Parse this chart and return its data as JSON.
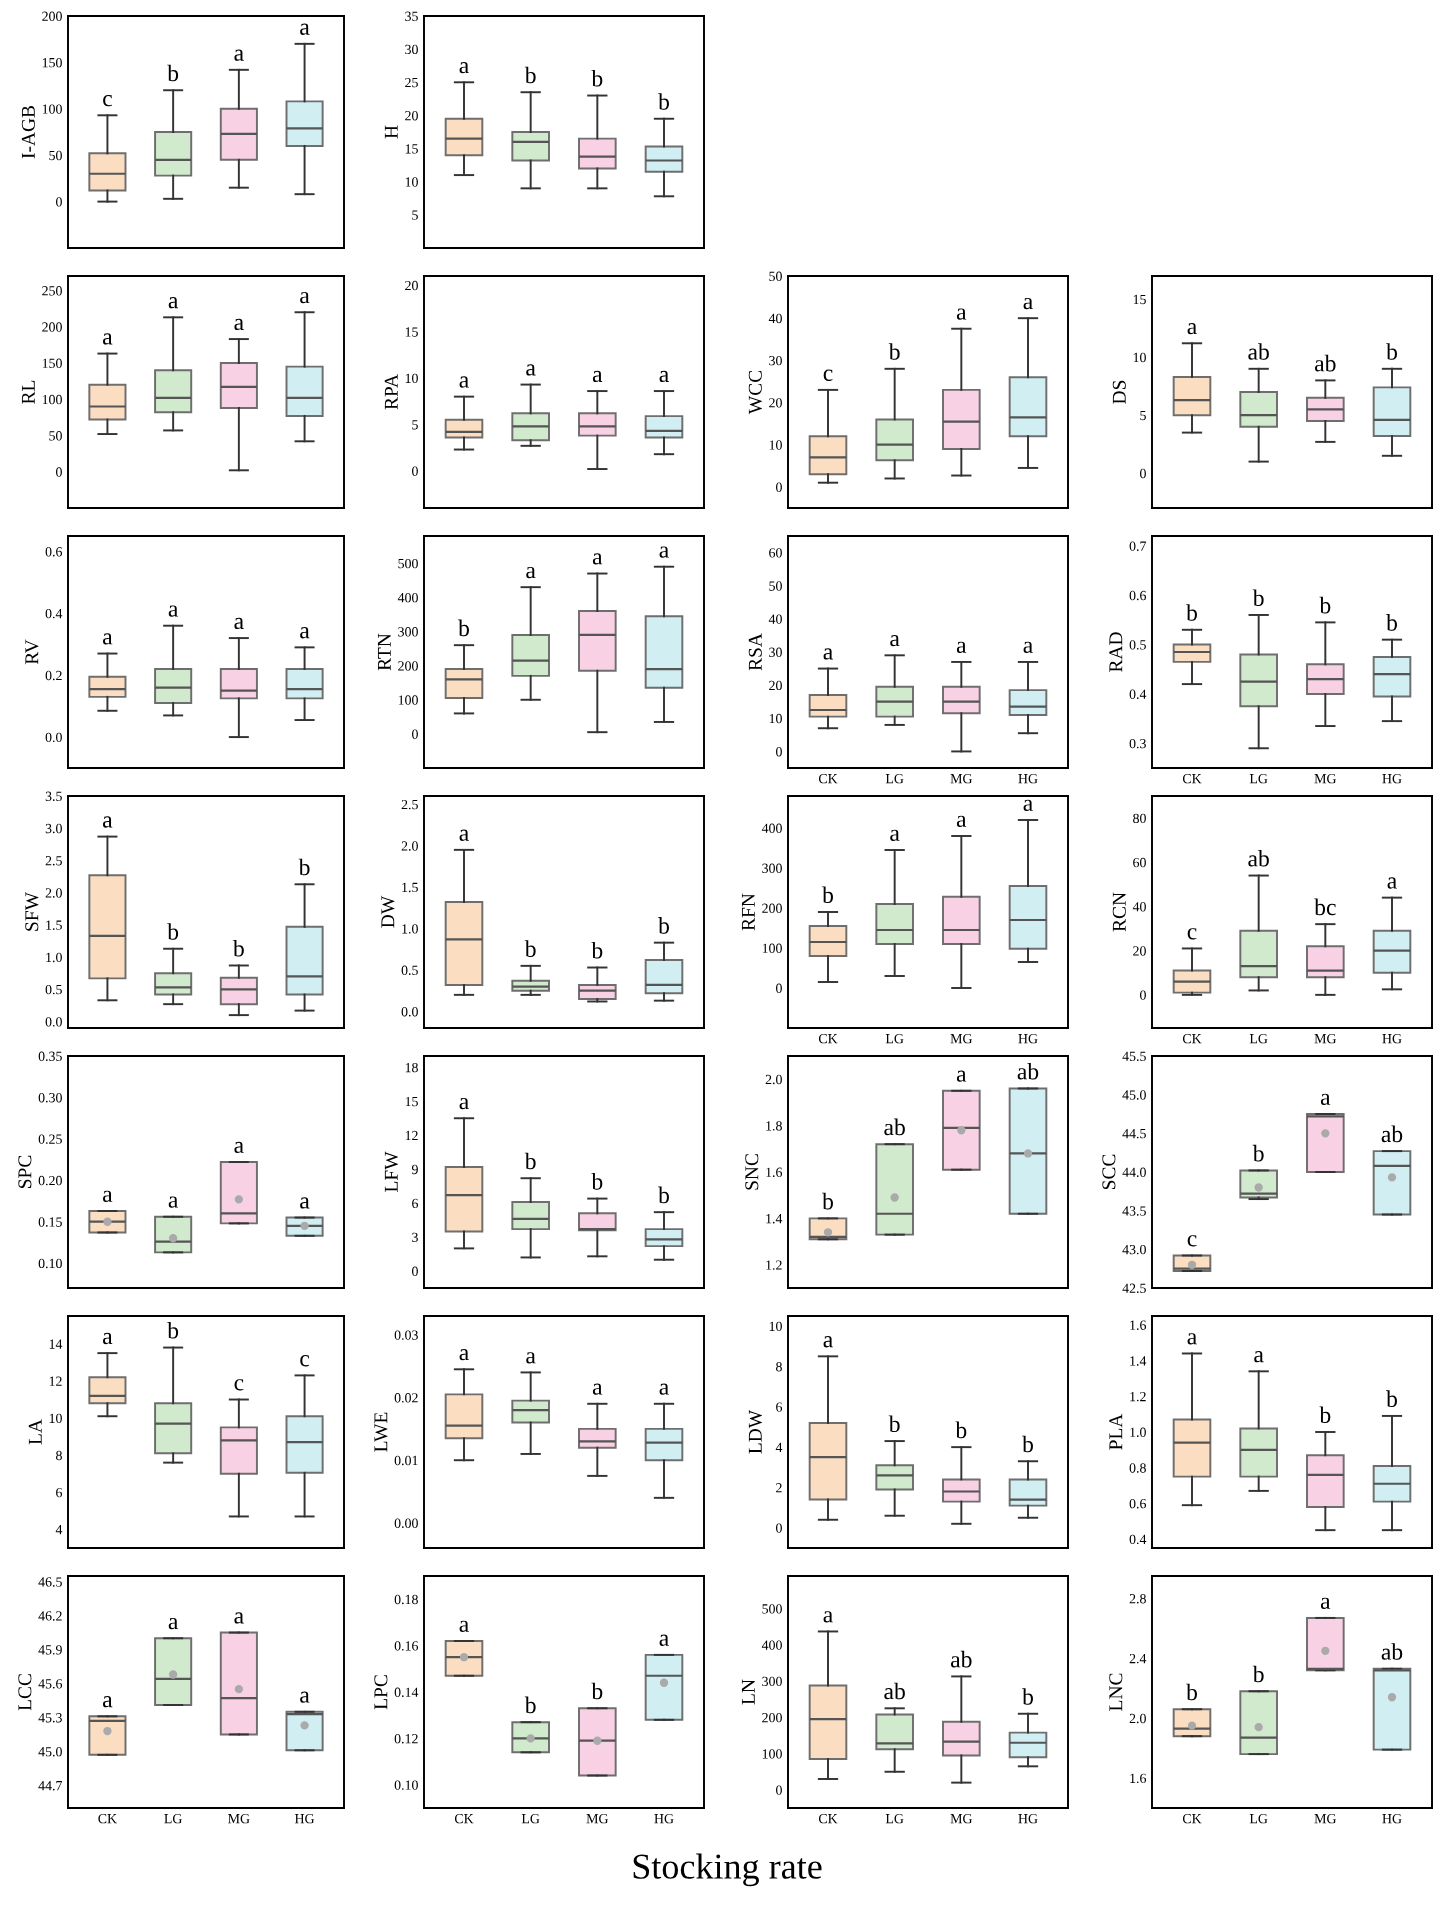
{
  "chart_data": [
    {
      "type": "box",
      "ylabel": "I-AGB",
      "categories": [
        "CK",
        "LG",
        "MG",
        "HG"
      ],
      "colors": [
        "#fbd9b8",
        "#c9e6c4",
        "#f9c9e0",
        "#c9ecf0"
      ],
      "ylim": [
        -50,
        200
      ],
      "yticks": [
        0,
        50,
        100,
        150,
        200
      ],
      "tick_labels": "y",
      "boxes": [
        {
          "low": 0,
          "q1": 12,
          "median": 30,
          "q3": 52,
          "high": 93
        },
        {
          "low": 3,
          "q1": 28,
          "median": 45,
          "q3": 75,
          "high": 120
        },
        {
          "low": 15,
          "q1": 45,
          "median": 73,
          "q3": 100,
          "high": 142
        },
        {
          "low": 8,
          "q1": 60,
          "median": 79,
          "q3": 108,
          "high": 170
        }
      ],
      "annotations": [
        {
          "text": "c",
          "x": "CK",
          "y": 93
        },
        {
          "text": "b",
          "x": "LG",
          "y": 120
        },
        {
          "text": "a",
          "x": "MG",
          "y": 142
        },
        {
          "text": "a",
          "x": "HG",
          "y": 170
        }
      ]
    },
    {
      "type": "box",
      "ylabel": "H",
      "categories": [
        "CK",
        "LG",
        "MG",
        "HG"
      ],
      "colors": [
        "#fbd9b8",
        "#c9e6c4",
        "#f9c9e0",
        "#c9ecf0"
      ],
      "ylim": [
        0,
        35
      ],
      "yticks": [
        5,
        10,
        15,
        20,
        25,
        30,
        35
      ],
      "tick_labels": "y",
      "boxes": [
        {
          "low": 11,
          "q1": 14,
          "median": 16.5,
          "q3": 19.5,
          "high": 25
        },
        {
          "low": 9,
          "q1": 13.2,
          "median": 16,
          "q3": 17.5,
          "high": 23.5
        },
        {
          "low": 9,
          "q1": 12,
          "median": 13.8,
          "q3": 16.5,
          "high": 23
        },
        {
          "low": 7.8,
          "q1": 11.5,
          "median": 13.2,
          "q3": 15.3,
          "high": 19.5
        }
      ],
      "annotations": [
        {
          "text": "a",
          "x": "CK",
          "y": 25
        },
        {
          "text": "b",
          "x": "LG",
          "y": 23.5
        },
        {
          "text": "b",
          "x": "MG",
          "y": 23
        },
        {
          "text": "b",
          "x": "HG",
          "y": 19.5
        }
      ]
    },
    {
      "type": "box",
      "ylabel": "RL",
      "categories": [
        "CK",
        "LG",
        "MG",
        "HG"
      ],
      "colors": [
        "#fbd9b8",
        "#c9e6c4",
        "#f9c9e0",
        "#c9ecf0"
      ],
      "ylim": [
        -50,
        270
      ],
      "yticks": [
        0,
        50,
        100,
        150,
        200,
        250
      ],
      "tick_labels": "y",
      "boxes": [
        {
          "low": 52,
          "q1": 72,
          "median": 90,
          "q3": 120,
          "high": 163
        },
        {
          "low": 57,
          "q1": 82,
          "median": 102,
          "q3": 140,
          "high": 213
        },
        {
          "low": 2,
          "q1": 88,
          "median": 117,
          "q3": 150,
          "high": 183
        },
        {
          "low": 42,
          "q1": 77,
          "median": 102,
          "q3": 145,
          "high": 220
        }
      ],
      "annotations": [
        {
          "text": "a",
          "x": "CK",
          "y": 163
        },
        {
          "text": "a",
          "x": "LG",
          "y": 213
        },
        {
          "text": "a",
          "x": "MG",
          "y": 183
        },
        {
          "text": "a",
          "x": "HG",
          "y": 220
        }
      ]
    },
    {
      "type": "box",
      "ylabel": "RPA",
      "categories": [
        "CK",
        "LG",
        "MG",
        "HG"
      ],
      "colors": [
        "#fbd9b8",
        "#c9e6c4",
        "#f9c9e0",
        "#c9ecf0"
      ],
      "ylim": [
        -4,
        21
      ],
      "yticks": [
        0,
        5,
        10,
        15,
        20
      ],
      "tick_labels": "y",
      "boxes": [
        {
          "low": 2.3,
          "q1": 3.6,
          "median": 4.2,
          "q3": 5.5,
          "high": 8
        },
        {
          "low": 2.7,
          "q1": 3.3,
          "median": 4.8,
          "q3": 6.2,
          "high": 9.3
        },
        {
          "low": 0.2,
          "q1": 3.8,
          "median": 4.8,
          "q3": 6.2,
          "high": 8.6
        },
        {
          "low": 1.8,
          "q1": 3.6,
          "median": 4.3,
          "q3": 5.9,
          "high": 8.6
        }
      ],
      "annotations": [
        {
          "text": "a",
          "x": "CK",
          "y": 8
        },
        {
          "text": "a",
          "x": "LG",
          "y": 9.3
        },
        {
          "text": "a",
          "x": "MG",
          "y": 8.6
        },
        {
          "text": "a",
          "x": "HG",
          "y": 8.6
        }
      ]
    },
    {
      "type": "box",
      "ylabel": "WCC",
      "categories": [
        "CK",
        "LG",
        "MG",
        "HG"
      ],
      "colors": [
        "#fbd9b8",
        "#c9e6c4",
        "#f9c9e0",
        "#c9ecf0"
      ],
      "ylim": [
        -5,
        50
      ],
      "yticks": [
        0,
        10,
        20,
        30,
        40,
        50
      ],
      "tick_labels": "y",
      "boxes": [
        {
          "low": 1,
          "q1": 3,
          "median": 7,
          "q3": 12,
          "high": 23
        },
        {
          "low": 2,
          "q1": 6.3,
          "median": 10,
          "q3": 16,
          "high": 28
        },
        {
          "low": 2.7,
          "q1": 9,
          "median": 15.5,
          "q3": 23,
          "high": 37.5
        },
        {
          "low": 4.5,
          "q1": 12,
          "median": 16.5,
          "q3": 26,
          "high": 40
        }
      ],
      "annotations": [
        {
          "text": "c",
          "x": "CK",
          "y": 23
        },
        {
          "text": "b",
          "x": "LG",
          "y": 28
        },
        {
          "text": "a",
          "x": "MG",
          "y": 37.5
        },
        {
          "text": "a",
          "x": "HG",
          "y": 40
        }
      ]
    },
    {
      "type": "box",
      "ylabel": "DS",
      "categories": [
        "CK",
        "LG",
        "MG",
        "HG"
      ],
      "colors": [
        "#fbd9b8",
        "#c9e6c4",
        "#f9c9e0",
        "#c9ecf0"
      ],
      "ylim": [
        -3,
        17
      ],
      "yticks": [
        0,
        5,
        10,
        15
      ],
      "tick_labels": "y",
      "boxes": [
        {
          "low": 3.5,
          "q1": 5,
          "median": 6.3,
          "q3": 8.3,
          "high": 11.2
        },
        {
          "low": 1,
          "q1": 4,
          "median": 5,
          "q3": 7,
          "high": 9
        },
        {
          "low": 2.7,
          "q1": 4.5,
          "median": 5.5,
          "q3": 6.5,
          "high": 8
        },
        {
          "low": 1.5,
          "q1": 3.2,
          "median": 4.6,
          "q3": 7.4,
          "high": 9
        }
      ],
      "annotations": [
        {
          "text": "a",
          "x": "CK",
          "y": 11.2
        },
        {
          "text": "ab",
          "x": "LG",
          "y": 9
        },
        {
          "text": "ab",
          "x": "MG",
          "y": 8
        },
        {
          "text": "b",
          "x": "HG",
          "y": 9
        }
      ]
    },
    {
      "type": "box",
      "ylabel": "RV",
      "categories": [
        "CK",
        "LG",
        "MG",
        "HG"
      ],
      "colors": [
        "#fbd9b8",
        "#c9e6c4",
        "#f9c9e0",
        "#c9ecf0"
      ],
      "ylim": [
        -0.1,
        0.65
      ],
      "yticks": [
        {
          "value": 0,
          "label": "0.0"
        },
        0.2,
        0.4,
        0.6
      ],
      "tick_labels": "y",
      "boxes": [
        {
          "low": 0.085,
          "q1": 0.13,
          "median": 0.155,
          "q3": 0.195,
          "high": 0.27
        },
        {
          "low": 0.07,
          "q1": 0.11,
          "median": 0.16,
          "q3": 0.22,
          "high": 0.36
        },
        {
          "low": 0,
          "q1": 0.125,
          "median": 0.15,
          "q3": 0.22,
          "high": 0.32
        },
        {
          "low": 0.055,
          "q1": 0.125,
          "median": 0.155,
          "q3": 0.22,
          "high": 0.29
        }
      ],
      "annotations": [
        {
          "text": "a",
          "x": "CK",
          "y": 0.27
        },
        {
          "text": "a",
          "x": "LG",
          "y": 0.36
        },
        {
          "text": "a",
          "x": "MG",
          "y": 0.32
        },
        {
          "text": "a",
          "x": "HG",
          "y": 0.29
        }
      ]
    },
    {
      "type": "box",
      "ylabel": "RTN",
      "categories": [
        "CK",
        "LG",
        "MG",
        "HG"
      ],
      "colors": [
        "#fbd9b8",
        "#c9e6c4",
        "#f9c9e0",
        "#c9ecf0"
      ],
      "ylim": [
        -100,
        580
      ],
      "yticks": [
        0,
        100,
        200,
        300,
        400,
        500
      ],
      "tick_labels": "y",
      "boxes": [
        {
          "low": 60,
          "q1": 105,
          "median": 160,
          "q3": 190,
          "high": 260
        },
        {
          "low": 100,
          "q1": 170,
          "median": 215,
          "q3": 290,
          "high": 430
        },
        {
          "low": 5,
          "q1": 185,
          "median": 290,
          "q3": 360,
          "high": 470
        },
        {
          "low": 35,
          "q1": 135,
          "median": 190,
          "q3": 345,
          "high": 490
        }
      ],
      "annotations": [
        {
          "text": "b",
          "x": "CK",
          "y": 260
        },
        {
          "text": "a",
          "x": "LG",
          "y": 430
        },
        {
          "text": "a",
          "x": "MG",
          "y": 470
        },
        {
          "text": "a",
          "x": "HG",
          "y": 490
        }
      ]
    },
    {
      "type": "box",
      "ylabel": "RSA",
      "categories": [
        "CK",
        "LG",
        "MG",
        "HG"
      ],
      "colors": [
        "#fbd9b8",
        "#c9e6c4",
        "#f9c9e0",
        "#c9ecf0"
      ],
      "ylim": [
        -5,
        65
      ],
      "yticks": [
        0,
        10,
        20,
        30,
        40,
        50,
        60
      ],
      "boxes": [
        {
          "low": 7,
          "q1": 10.5,
          "median": 12.5,
          "q3": 17,
          "high": 25
        },
        {
          "low": 8,
          "q1": 10.5,
          "median": 15,
          "q3": 19.5,
          "high": 29
        },
        {
          "low": 0,
          "q1": 11.5,
          "median": 15,
          "q3": 19.5,
          "high": 27
        },
        {
          "low": 5.5,
          "q1": 11,
          "median": 13.5,
          "q3": 18.5,
          "high": 27
        }
      ],
      "annotations": [
        {
          "text": "a",
          "x": "CK",
          "y": 25
        },
        {
          "text": "a",
          "x": "LG",
          "y": 29
        },
        {
          "text": "a",
          "x": "MG",
          "y": 27
        },
        {
          "text": "a",
          "x": "HG",
          "y": 27
        }
      ]
    },
    {
      "type": "box",
      "ylabel": "RAD",
      "categories": [
        "CK",
        "LG",
        "MG",
        "HG"
      ],
      "colors": [
        "#fbd9b8",
        "#c9e6c4",
        "#f9c9e0",
        "#c9ecf0"
      ],
      "ylim": [
        0.25,
        0.72
      ],
      "yticks": [
        0.3,
        0.4,
        0.5,
        0.6,
        0.7
      ],
      "boxes": [
        {
          "low": 0.42,
          "q1": 0.465,
          "median": 0.485,
          "q3": 0.5,
          "high": 0.53
        },
        {
          "low": 0.29,
          "q1": 0.375,
          "median": 0.425,
          "q3": 0.48,
          "high": 0.56
        },
        {
          "low": 0.335,
          "q1": 0.4,
          "median": 0.43,
          "q3": 0.46,
          "high": 0.545
        },
        {
          "low": 0.345,
          "q1": 0.395,
          "median": 0.44,
          "q3": 0.475,
          "high": 0.51
        }
      ],
      "annotations": [
        {
          "text": "b",
          "x": "CK",
          "y": 0.53
        },
        {
          "text": "b",
          "x": "LG",
          "y": 0.56
        },
        {
          "text": "b",
          "x": "MG",
          "y": 0.545
        },
        {
          "text": "b",
          "x": "HG",
          "y": 0.51
        }
      ]
    },
    {
      "type": "box",
      "ylabel": "SFW",
      "categories": [
        "CK",
        "LG",
        "MG",
        "HG"
      ],
      "colors": [
        "#fbd9b8",
        "#c9e6c4",
        "#f9c9e0",
        "#c9ecf0"
      ],
      "ylim": [
        -0.1,
        3.5
      ],
      "yticks": [
        {
          "value": 0,
          "label": "0.0"
        },
        0.5,
        {
          "value": 1,
          "label": "1.0"
        },
        1.5,
        {
          "value": 2,
          "label": "2.0"
        },
        2.5,
        {
          "value": 3,
          "label": "3.0"
        },
        3.5
      ],
      "tick_labels": "y",
      "boxes": [
        {
          "low": 0.33,
          "q1": 0.67,
          "median": 1.33,
          "q3": 2.27,
          "high": 2.87
        },
        {
          "low": 0.27,
          "q1": 0.42,
          "median": 0.53,
          "q3": 0.75,
          "high": 1.13
        },
        {
          "low": 0.1,
          "q1": 0.27,
          "median": 0.5,
          "q3": 0.68,
          "high": 0.87
        },
        {
          "low": 0.17,
          "q1": 0.42,
          "median": 0.7,
          "q3": 1.47,
          "high": 2.13
        }
      ],
      "annotations": [
        {
          "text": "a",
          "x": "CK",
          "y": 2.87
        },
        {
          "text": "b",
          "x": "LG",
          "y": 1.13
        },
        {
          "text": "b",
          "x": "MG",
          "y": 0.87
        },
        {
          "text": "b",
          "x": "HG",
          "y": 2.13
        }
      ]
    },
    {
      "type": "box",
      "ylabel": "DW",
      "categories": [
        "CK",
        "LG",
        "MG",
        "HG"
      ],
      "colors": [
        "#fbd9b8",
        "#c9e6c4",
        "#f9c9e0",
        "#c9ecf0"
      ],
      "ylim": [
        -0.2,
        2.6
      ],
      "yticks": [
        {
          "value": 0,
          "label": "0.0"
        },
        0.5,
        {
          "value": 1,
          "label": "1.0"
        },
        1.5,
        {
          "value": 2,
          "label": "2.0"
        },
        2.5
      ],
      "tick_labels": "y",
      "boxes": [
        {
          "low": 0.2,
          "q1": 0.32,
          "median": 0.87,
          "q3": 1.32,
          "high": 1.95
        },
        {
          "low": 0.2,
          "q1": 0.25,
          "median": 0.3,
          "q3": 0.37,
          "high": 0.55
        },
        {
          "low": 0.12,
          "q1": 0.15,
          "median": 0.25,
          "q3": 0.32,
          "high": 0.53
        },
        {
          "low": 0.13,
          "q1": 0.22,
          "median": 0.32,
          "q3": 0.62,
          "high": 0.83
        }
      ],
      "annotations": [
        {
          "text": "a",
          "x": "CK",
          "y": 1.95
        },
        {
          "text": "b",
          "x": "LG",
          "y": 0.55
        },
        {
          "text": "b",
          "x": "MG",
          "y": 0.53
        },
        {
          "text": "b",
          "x": "HG",
          "y": 0.83
        }
      ]
    },
    {
      "type": "box",
      "ylabel": "RFN",
      "categories": [
        "CK",
        "LG",
        "MG",
        "HG"
      ],
      "colors": [
        "#fbd9b8",
        "#c9e6c4",
        "#f9c9e0",
        "#c9ecf0"
      ],
      "ylim": [
        -100,
        480
      ],
      "yticks": [
        0,
        100,
        200,
        300,
        400
      ],
      "boxes": [
        {
          "low": 15,
          "q1": 80,
          "median": 115,
          "q3": 155,
          "high": 190
        },
        {
          "low": 30,
          "q1": 110,
          "median": 145,
          "q3": 210,
          "high": 345
        },
        {
          "low": 0,
          "q1": 110,
          "median": 145,
          "q3": 228,
          "high": 380
        },
        {
          "low": 65,
          "q1": 98,
          "median": 170,
          "q3": 255,
          "high": 420
        }
      ],
      "annotations": [
        {
          "text": "b",
          "x": "CK",
          "y": 190
        },
        {
          "text": "a",
          "x": "LG",
          "y": 345
        },
        {
          "text": "a",
          "x": "MG",
          "y": 380
        },
        {
          "text": "a",
          "x": "HG",
          "y": 420
        }
      ]
    },
    {
      "type": "box",
      "ylabel": "RCN",
      "categories": [
        "CK",
        "LG",
        "MG",
        "HG"
      ],
      "colors": [
        "#fbd9b8",
        "#c9e6c4",
        "#f9c9e0",
        "#c9ecf0"
      ],
      "ylim": [
        -15,
        90
      ],
      "yticks": [
        0,
        20,
        40,
        60,
        80
      ],
      "boxes": [
        {
          "low": 0,
          "q1": 1,
          "median": 6,
          "q3": 11,
          "high": 21
        },
        {
          "low": 2,
          "q1": 8,
          "median": 13,
          "q3": 29,
          "high": 54
        },
        {
          "low": 0,
          "q1": 8,
          "median": 11,
          "q3": 22,
          "high": 32
        },
        {
          "low": 2.5,
          "q1": 10,
          "median": 20,
          "q3": 29,
          "high": 44
        }
      ],
      "annotations": [
        {
          "text": "c",
          "x": "CK",
          "y": 21
        },
        {
          "text": "ab",
          "x": "LG",
          "y": 54
        },
        {
          "text": "bc",
          "x": "MG",
          "y": 32
        },
        {
          "text": "a",
          "x": "HG",
          "y": 44
        }
      ]
    },
    {
      "type": "box",
      "ylabel": "SPC",
      "categories": [
        "CK",
        "LG",
        "MG",
        "HG"
      ],
      "colors": [
        "#fbd9b8",
        "#c9e6c4",
        "#f9c9e0",
        "#c9ecf0"
      ],
      "ylim": [
        0.07,
        0.35
      ],
      "yticks": [
        {
          "value": 0.1,
          "label": "0.10"
        },
        0.15,
        {
          "value": 0.2,
          "label": "0.20"
        },
        0.25,
        {
          "value": 0.3,
          "label": "0.30"
        },
        0.35
      ],
      "tick_labels": "y",
      "boxes": [
        {
          "low": 0.137,
          "q1": 0.137,
          "median": 0.15,
          "q3": 0.163,
          "high": 0.163,
          "mean": 0.15
        },
        {
          "low": 0.113,
          "q1": 0.113,
          "median": 0.126,
          "q3": 0.156,
          "high": 0.156,
          "mean": 0.13
        },
        {
          "low": 0.148,
          "q1": 0.148,
          "median": 0.16,
          "q3": 0.222,
          "high": 0.222,
          "mean": 0.177
        },
        {
          "low": 0.133,
          "q1": 0.133,
          "median": 0.145,
          "q3": 0.155,
          "high": 0.155,
          "mean": 0.145
        }
      ],
      "annotations": [
        {
          "text": "a",
          "x": "CK",
          "y": 0.163
        },
        {
          "text": "a",
          "x": "LG",
          "y": 0.156
        },
        {
          "text": "a",
          "x": "MG",
          "y": 0.222
        },
        {
          "text": "a",
          "x": "HG",
          "y": 0.155
        }
      ]
    },
    {
      "type": "box",
      "ylabel": "LFW",
      "categories": [
        "CK",
        "LG",
        "MG",
        "HG"
      ],
      "colors": [
        "#fbd9b8",
        "#c9e6c4",
        "#f9c9e0",
        "#c9ecf0"
      ],
      "ylim": [
        -1.5,
        19
      ],
      "yticks": [
        0,
        3,
        6,
        9,
        12,
        15,
        18
      ],
      "tick_labels": "y",
      "boxes": [
        {
          "low": 2,
          "q1": 3.5,
          "median": 6.7,
          "q3": 9.2,
          "high": 13.5
        },
        {
          "low": 1.2,
          "q1": 3.7,
          "median": 4.6,
          "q3": 6.1,
          "high": 8.2
        },
        {
          "low": 1.3,
          "q1": 3.6,
          "median": 3.7,
          "q3": 5.1,
          "high": 6.4
        },
        {
          "low": 1,
          "q1": 2.2,
          "median": 2.8,
          "q3": 3.7,
          "high": 5.2
        }
      ],
      "annotations": [
        {
          "text": "a",
          "x": "CK",
          "y": 13.5
        },
        {
          "text": "b",
          "x": "LG",
          "y": 8.2
        },
        {
          "text": "b",
          "x": "MG",
          "y": 6.4
        },
        {
          "text": "b",
          "x": "HG",
          "y": 5.2
        }
      ]
    },
    {
      "type": "box",
      "ylabel": "SNC",
      "categories": [
        "CK",
        "LG",
        "MG",
        "HG"
      ],
      "colors": [
        "#fbd9b8",
        "#c9e6c4",
        "#f9c9e0",
        "#c9ecf0"
      ],
      "ylim": [
        1.1,
        2.1
      ],
      "yticks": [
        1.2,
        1.4,
        1.6,
        1.8,
        {
          "value": 2,
          "label": "2.0"
        }
      ],
      "tick_labels": "y",
      "boxes": [
        {
          "low": 1.31,
          "q1": 1.31,
          "median": 1.32,
          "q3": 1.4,
          "high": 1.4,
          "mean": 1.34
        },
        {
          "low": 1.33,
          "q1": 1.33,
          "median": 1.42,
          "q3": 1.72,
          "high": 1.72,
          "mean": 1.49
        },
        {
          "low": 1.61,
          "q1": 1.61,
          "median": 1.79,
          "q3": 1.95,
          "high": 1.95,
          "mean": 1.78
        },
        {
          "low": 1.42,
          "q1": 1.42,
          "median": 1.68,
          "q3": 1.96,
          "high": 1.96,
          "mean": 1.68
        }
      ],
      "annotations": [
        {
          "text": "b",
          "x": "CK",
          "y": 1.4
        },
        {
          "text": "ab",
          "x": "LG",
          "y": 1.72
        },
        {
          "text": "a",
          "x": "MG",
          "y": 1.95
        },
        {
          "text": "ab",
          "x": "HG",
          "y": 1.96
        }
      ]
    },
    {
      "type": "box",
      "ylabel": "SCC",
      "categories": [
        "CK",
        "LG",
        "MG",
        "HG"
      ],
      "colors": [
        "#fbd9b8",
        "#c9e6c4",
        "#f9c9e0",
        "#c9ecf0"
      ],
      "ylim": [
        42.5,
        45.5
      ],
      "yticks": [
        42.5,
        {
          "value": 43,
          "label": "43.0"
        },
        43.5,
        {
          "value": 44,
          "label": "44.0"
        },
        44.5,
        {
          "value": 45,
          "label": "45.0"
        },
        45.5
      ],
      "tick_labels": "y",
      "boxes": [
        {
          "low": 42.72,
          "q1": 42.72,
          "median": 42.75,
          "q3": 42.92,
          "high": 42.92,
          "mean": 42.8
        },
        {
          "low": 43.65,
          "q1": 43.67,
          "median": 43.72,
          "q3": 44.02,
          "high": 44.02,
          "mean": 43.8
        },
        {
          "low": 44.0,
          "q1": 44.0,
          "median": 44.72,
          "q3": 44.75,
          "high": 44.75,
          "mean": 44.5
        },
        {
          "low": 43.45,
          "q1": 43.45,
          "median": 44.08,
          "q3": 44.27,
          "high": 44.27,
          "mean": 43.93
        }
      ],
      "annotations": [
        {
          "text": "c",
          "x": "CK",
          "y": 42.92
        },
        {
          "text": "b",
          "x": "LG",
          "y": 44.02
        },
        {
          "text": "a",
          "x": "MG",
          "y": 44.75
        },
        {
          "text": "ab",
          "x": "HG",
          "y": 44.27
        }
      ]
    },
    {
      "type": "box",
      "ylabel": "LA",
      "categories": [
        "CK",
        "LG",
        "MG",
        "HG"
      ],
      "colors": [
        "#fbd9b8",
        "#c9e6c4",
        "#f9c9e0",
        "#c9ecf0"
      ],
      "ylim": [
        3,
        15.5
      ],
      "yticks": [
        4,
        6,
        8,
        10,
        12,
        14
      ],
      "tick_labels": "y",
      "boxes": [
        {
          "low": 10.1,
          "q1": 10.8,
          "median": 11.2,
          "q3": 12.2,
          "high": 13.5
        },
        {
          "low": 7.6,
          "q1": 8.1,
          "median": 9.7,
          "q3": 10.8,
          "high": 13.8
        },
        {
          "low": 4.7,
          "q1": 7,
          "median": 8.8,
          "q3": 9.5,
          "high": 11
        },
        {
          "low": 4.7,
          "q1": 7.05,
          "median": 8.7,
          "q3": 10.1,
          "high": 12.3
        }
      ],
      "annotations": [
        {
          "text": "a",
          "x": "CK",
          "y": 13.5
        },
        {
          "text": "b",
          "x": "LG",
          "y": 13.8
        },
        {
          "text": "c",
          "x": "MG",
          "y": 11
        },
        {
          "text": "c",
          "x": "HG",
          "y": 12.3
        }
      ]
    },
    {
      "type": "box",
      "ylabel": "LWE",
      "categories": [
        "CK",
        "LG",
        "MG",
        "HG"
      ],
      "colors": [
        "#fbd9b8",
        "#c9e6c4",
        "#f9c9e0",
        "#c9ecf0"
      ],
      "ylim": [
        -0.004,
        0.033
      ],
      "yticks": [
        {
          "value": 0,
          "label": "0.00"
        },
        0.01,
        0.02,
        0.03
      ],
      "tick_labels": "y",
      "boxes": [
        {
          "low": 0.01,
          "q1": 0.0135,
          "median": 0.0155,
          "q3": 0.0205,
          "high": 0.0245
        },
        {
          "low": 0.011,
          "q1": 0.016,
          "median": 0.018,
          "q3": 0.0195,
          "high": 0.024
        },
        {
          "low": 0.0075,
          "q1": 0.012,
          "median": 0.013,
          "q3": 0.015,
          "high": 0.019
        },
        {
          "low": 0.004,
          "q1": 0.01,
          "median": 0.0128,
          "q3": 0.015,
          "high": 0.019
        }
      ],
      "annotations": [
        {
          "text": "a",
          "x": "CK",
          "y": 0.0245
        },
        {
          "text": "a",
          "x": "LG",
          "y": 0.024
        },
        {
          "text": "a",
          "x": "MG",
          "y": 0.019
        },
        {
          "text": "a",
          "x": "HG",
          "y": 0.019
        }
      ]
    },
    {
      "type": "box",
      "ylabel": "LDW",
      "categories": [
        "CK",
        "LG",
        "MG",
        "HG"
      ],
      "colors": [
        "#fbd9b8",
        "#c9e6c4",
        "#f9c9e0",
        "#c9ecf0"
      ],
      "ylim": [
        -1,
        10.5
      ],
      "yticks": [
        0,
        2,
        4,
        6,
        8,
        10
      ],
      "tick_labels": "y",
      "boxes": [
        {
          "low": 0.4,
          "q1": 1.4,
          "median": 3.5,
          "q3": 5.2,
          "high": 8.5
        },
        {
          "low": 0.6,
          "q1": 1.9,
          "median": 2.6,
          "q3": 3.1,
          "high": 4.3
        },
        {
          "low": 0.2,
          "q1": 1.3,
          "median": 1.8,
          "q3": 2.4,
          "high": 4
        },
        {
          "low": 0.5,
          "q1": 1.1,
          "median": 1.4,
          "q3": 2.4,
          "high": 3.3
        }
      ],
      "annotations": [
        {
          "text": "a",
          "x": "CK",
          "y": 8.5
        },
        {
          "text": "b",
          "x": "LG",
          "y": 4.3
        },
        {
          "text": "b",
          "x": "MG",
          "y": 4
        },
        {
          "text": "b",
          "x": "HG",
          "y": 3.3
        }
      ]
    },
    {
      "type": "box",
      "ylabel": "PLA",
      "categories": [
        "CK",
        "LG",
        "MG",
        "HG"
      ],
      "colors": [
        "#fbd9b8",
        "#c9e6c4",
        "#f9c9e0",
        "#c9ecf0"
      ],
      "ylim": [
        0.35,
        1.65
      ],
      "yticks": [
        0.4,
        0.6,
        0.8,
        {
          "value": 1,
          "label": "1.0"
        },
        1.2,
        1.4,
        1.6
      ],
      "tick_labels": "y",
      "boxes": [
        {
          "low": 0.59,
          "q1": 0.75,
          "median": 0.94,
          "q3": 1.07,
          "high": 1.44
        },
        {
          "low": 0.67,
          "q1": 0.75,
          "median": 0.9,
          "q3": 1.02,
          "high": 1.34
        },
        {
          "low": 0.45,
          "q1": 0.58,
          "median": 0.76,
          "q3": 0.87,
          "high": 1.0
        },
        {
          "low": 0.45,
          "q1": 0.61,
          "median": 0.71,
          "q3": 0.81,
          "high": 1.09
        }
      ],
      "annotations": [
        {
          "text": "a",
          "x": "CK",
          "y": 1.44
        },
        {
          "text": "a",
          "x": "LG",
          "y": 1.34
        },
        {
          "text": "b",
          "x": "MG",
          "y": 1.0
        },
        {
          "text": "b",
          "x": "HG",
          "y": 1.09
        }
      ]
    },
    {
      "type": "box",
      "ylabel": "LCC",
      "categories": [
        "CK",
        "LG",
        "MG",
        "HG"
      ],
      "colors": [
        "#fbd9b8",
        "#c9e6c4",
        "#f9c9e0",
        "#c9ecf0"
      ],
      "ylim": [
        44.5,
        46.55
      ],
      "yticks": [
        44.7,
        {
          "value": 45,
          "label": "45.0"
        },
        45.3,
        45.6,
        45.9,
        46.2,
        46.5
      ],
      "boxes": [
        {
          "low": 44.97,
          "q1": 44.97,
          "median": 45.27,
          "q3": 45.31,
          "high": 45.31,
          "mean": 45.18
        },
        {
          "low": 45.41,
          "q1": 45.41,
          "median": 45.64,
          "q3": 46.0,
          "high": 46.0,
          "mean": 45.68
        },
        {
          "low": 45.15,
          "q1": 45.15,
          "median": 45.47,
          "q3": 46.05,
          "high": 46.05,
          "mean": 45.55
        },
        {
          "low": 45.01,
          "q1": 45.01,
          "median": 45.33,
          "q3": 45.35,
          "high": 45.35,
          "mean": 45.23
        }
      ],
      "annotations": [
        {
          "text": "a",
          "x": "CK",
          "y": 45.31
        },
        {
          "text": "a",
          "x": "LG",
          "y": 46.0
        },
        {
          "text": "a",
          "x": "MG",
          "y": 46.05
        },
        {
          "text": "a",
          "x": "HG",
          "y": 45.35
        }
      ]
    },
    {
      "type": "box",
      "ylabel": "LPC",
      "categories": [
        "CK",
        "LG",
        "MG",
        "HG"
      ],
      "colors": [
        "#fbd9b8",
        "#c9e6c4",
        "#f9c9e0",
        "#c9ecf0"
      ],
      "ylim": [
        0.09,
        0.19
      ],
      "yticks": [
        {
          "value": 0.1,
          "label": "0.10"
        },
        0.12,
        0.14,
        0.16,
        0.18
      ],
      "boxes": [
        {
          "low": 0.147,
          "q1": 0.147,
          "median": 0.155,
          "q3": 0.162,
          "high": 0.162,
          "mean": 0.155
        },
        {
          "low": 0.114,
          "q1": 0.114,
          "median": 0.12,
          "q3": 0.127,
          "high": 0.127,
          "mean": 0.12
        },
        {
          "low": 0.104,
          "q1": 0.104,
          "median": 0.119,
          "q3": 0.133,
          "high": 0.133,
          "mean": 0.119
        },
        {
          "low": 0.128,
          "q1": 0.128,
          "median": 0.147,
          "q3": 0.156,
          "high": 0.156,
          "mean": 0.144
        }
      ],
      "annotations": [
        {
          "text": "a",
          "x": "CK",
          "y": 0.162
        },
        {
          "text": "b",
          "x": "LG",
          "y": 0.127
        },
        {
          "text": "b",
          "x": "MG",
          "y": 0.133
        },
        {
          "text": "a",
          "x": "HG",
          "y": 0.156
        }
      ]
    },
    {
      "type": "box",
      "ylabel": "LN",
      "categories": [
        "CK",
        "LG",
        "MG",
        "HG"
      ],
      "colors": [
        "#fbd9b8",
        "#c9e6c4",
        "#f9c9e0",
        "#c9ecf0"
      ],
      "ylim": [
        -50,
        590
      ],
      "yticks": [
        0,
        100,
        200,
        300,
        400,
        500
      ],
      "boxes": [
        {
          "low": 30,
          "q1": 85,
          "median": 195,
          "q3": 288,
          "high": 437
        },
        {
          "low": 50,
          "q1": 112,
          "median": 128,
          "q3": 208,
          "high": 225
        },
        {
          "low": 20,
          "q1": 95,
          "median": 133,
          "q3": 188,
          "high": 313
        },
        {
          "low": 65,
          "q1": 90,
          "median": 130,
          "q3": 158,
          "high": 210
        }
      ],
      "annotations": [
        {
          "text": "a",
          "x": "CK",
          "y": 437
        },
        {
          "text": "ab",
          "x": "LG",
          "y": 225
        },
        {
          "text": "ab",
          "x": "MG",
          "y": 313
        },
        {
          "text": "b",
          "x": "HG",
          "y": 210
        }
      ]
    },
    {
      "type": "box",
      "ylabel": "LNC",
      "categories": [
        "CK",
        "LG",
        "MG",
        "HG"
      ],
      "colors": [
        "#fbd9b8",
        "#c9e6c4",
        "#f9c9e0",
        "#c9ecf0"
      ],
      "ylim": [
        1.4,
        2.95
      ],
      "yticks": [
        1.6,
        {
          "value": 2,
          "label": "2.0"
        },
        2.4,
        2.8
      ],
      "boxes": [
        {
          "low": 1.88,
          "q1": 1.88,
          "median": 1.93,
          "q3": 2.06,
          "high": 2.06,
          "mean": 1.95
        },
        {
          "low": 1.76,
          "q1": 1.76,
          "median": 1.87,
          "q3": 2.18,
          "high": 2.18,
          "mean": 1.94
        },
        {
          "low": 2.32,
          "q1": 2.32,
          "median": 2.33,
          "q3": 2.67,
          "high": 2.67,
          "mean": 2.45
        },
        {
          "low": 1.79,
          "q1": 1.79,
          "median": 2.32,
          "q3": 2.33,
          "high": 2.33,
          "mean": 2.14
        }
      ],
      "annotations": [
        {
          "text": "b",
          "x": "CK",
          "y": 2.06
        },
        {
          "text": "b",
          "x": "LG",
          "y": 2.18
        },
        {
          "text": "a",
          "x": "MG",
          "y": 2.67
        },
        {
          "text": "ab",
          "x": "HG",
          "y": 2.33
        },
        "Stocking rate"
      ]
    }
  ]
}
